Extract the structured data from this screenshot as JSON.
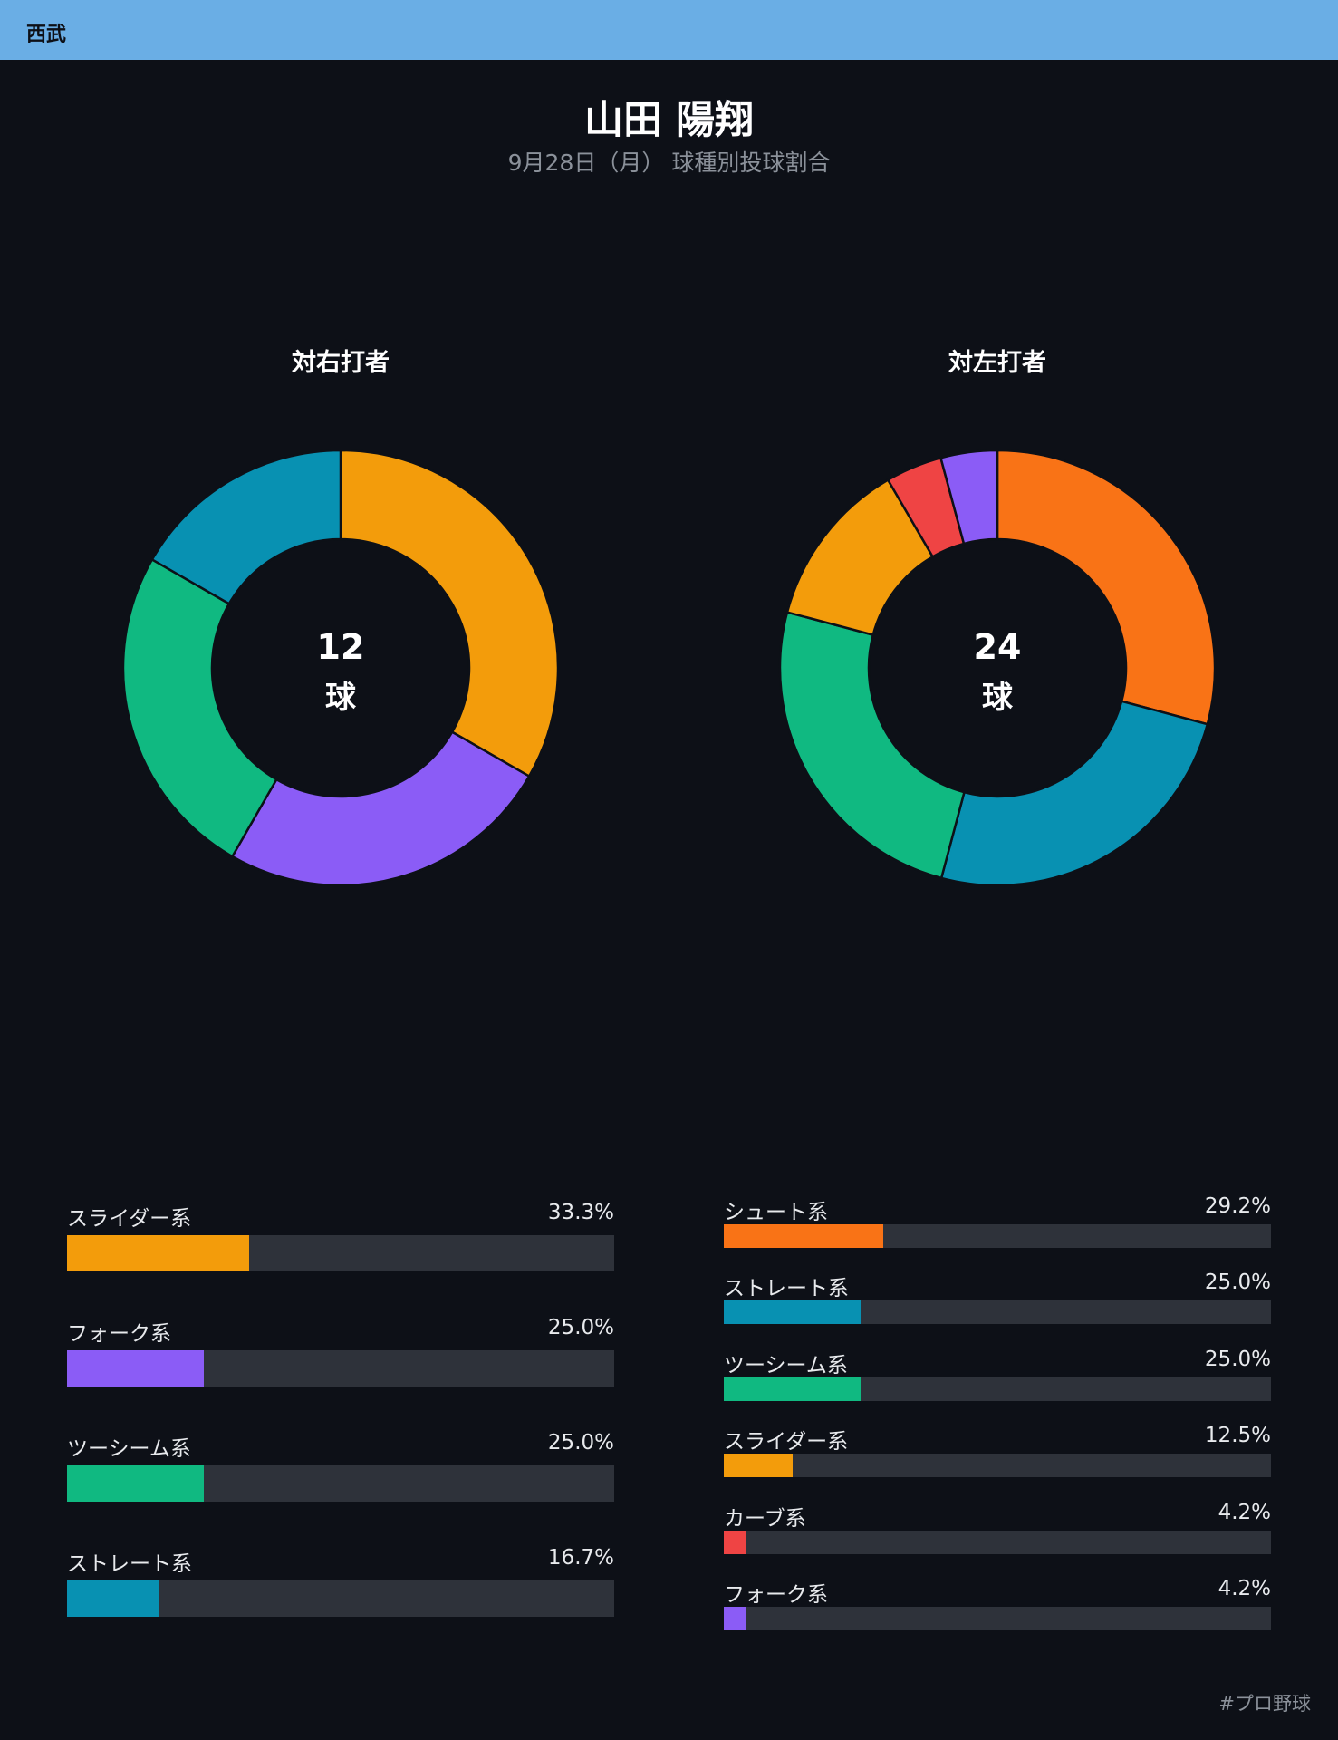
{
  "team": {
    "name": "西武"
  },
  "header": {
    "title": "山田 陽翔",
    "subtitle": "9月28日（月） 球種別投球割合"
  },
  "footer": {
    "tag": "#プロ野球"
  },
  "chart_data": [
    {
      "type": "pie",
      "title": "対右打者",
      "total": "12",
      "unit": "球",
      "categories": [
        "スライダー系",
        "フォーク系",
        "ツーシーム系",
        "ストレート系"
      ],
      "values": [
        33.3,
        25.0,
        25.0,
        16.7
      ],
      "labels": [
        "33.3%",
        "25.0%",
        "25.0%",
        "16.7%"
      ],
      "colors": [
        "#f39c0b",
        "#8b5cf6",
        "#10b981",
        "#0891b2"
      ]
    },
    {
      "type": "pie",
      "title": "対左打者",
      "total": "24",
      "unit": "球",
      "categories": [
        "シュート系",
        "ストレート系",
        "ツーシーム系",
        "スライダー系",
        "カーブ系",
        "フォーク系"
      ],
      "values": [
        29.2,
        25.0,
        25.0,
        12.5,
        4.2,
        4.2
      ],
      "labels": [
        "29.2%",
        "25.0%",
        "25.0%",
        "12.5%",
        "4.2%",
        "4.2%"
      ],
      "colors": [
        "#f97316",
        "#0891b2",
        "#10b981",
        "#f39c0b",
        "#ef4444",
        "#8b5cf6"
      ]
    }
  ]
}
